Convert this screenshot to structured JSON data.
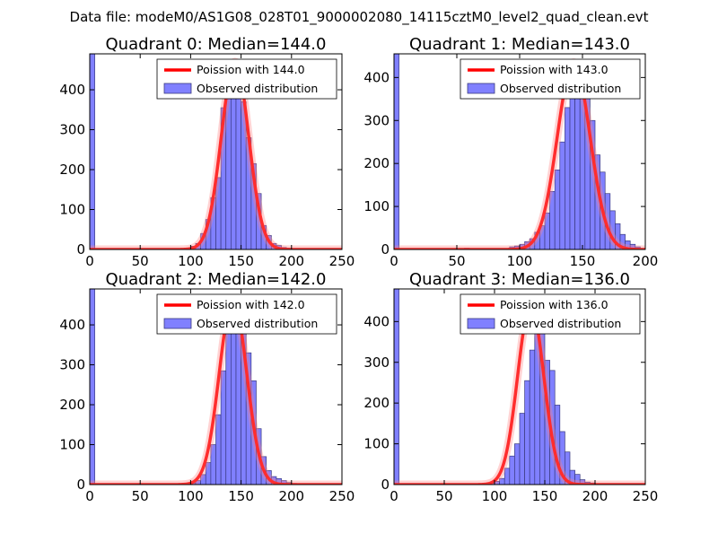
{
  "figure_title": "Data file: modeM0/AS1G08_028T01_9000002080_14115cztM0_level2_quad_clean.evt",
  "colors": {
    "bar_fill": "#8080ff",
    "bar_edge": "#3a3a80",
    "fit_line": "#ff0000",
    "axes": "#000000"
  },
  "chart_data": [
    {
      "type": "bar",
      "title": "Quadrant 0: Median=144.0",
      "median": 144.0,
      "xlim": [
        0,
        250
      ],
      "ylim": [
        0,
        490
      ],
      "xticks": [
        0,
        50,
        100,
        150,
        200,
        250
      ],
      "yticks": [
        0,
        100,
        200,
        300,
        400
      ],
      "legend": {
        "placement": "top-right",
        "fit_label": "Poission with 144.0",
        "hist_label": "Observed distribution"
      },
      "bin_width": 5,
      "bin_starts": [
        0,
        95,
        100,
        105,
        110,
        115,
        120,
        125,
        130,
        135,
        140,
        145,
        150,
        155,
        160,
        165,
        170,
        175,
        180,
        185,
        190,
        195,
        200
      ],
      "counts": [
        490,
        3,
        8,
        15,
        40,
        75,
        130,
        180,
        355,
        395,
        430,
        445,
        370,
        280,
        215,
        140,
        60,
        35,
        15,
        10,
        5,
        3,
        2
      ],
      "fit": {
        "mean": 144.0,
        "peak": 470,
        "sigma": 13.5
      }
    },
    {
      "type": "bar",
      "title": "Quadrant 1: Median=143.0",
      "median": 143.0,
      "xlim": [
        0,
        200
      ],
      "ylim": [
        0,
        455
      ],
      "xticks": [
        0,
        50,
        100,
        150,
        200
      ],
      "yticks": [
        0,
        100,
        200,
        300,
        400
      ],
      "legend": {
        "placement": "top-right",
        "fit_label": "Poission with 143.0",
        "hist_label": "Observed distribution"
      },
      "bin_width": 4,
      "bin_starts": [
        0,
        56,
        92,
        96,
        100,
        104,
        108,
        112,
        116,
        120,
        124,
        128,
        132,
        136,
        140,
        144,
        148,
        152,
        156,
        160,
        164,
        168,
        172,
        176,
        180,
        184,
        188,
        192
      ],
      "counts": [
        455,
        3,
        6,
        8,
        12,
        18,
        25,
        40,
        55,
        85,
        135,
        185,
        250,
        330,
        380,
        420,
        440,
        390,
        300,
        220,
        180,
        130,
        90,
        60,
        35,
        20,
        12,
        6
      ],
      "fit": {
        "mean": 143.0,
        "peak": 435,
        "sigma": 13.0
      }
    },
    {
      "type": "bar",
      "title": "Quadrant 2: Median=142.0",
      "median": 142.0,
      "xlim": [
        0,
        250
      ],
      "ylim": [
        0,
        490
      ],
      "xticks": [
        0,
        50,
        100,
        150,
        200,
        250
      ],
      "yticks": [
        0,
        100,
        200,
        300,
        400
      ],
      "legend": {
        "placement": "top-right",
        "fit_label": "Poission with 142.0",
        "hist_label": "Observed distribution"
      },
      "bin_width": 5,
      "bin_starts": [
        0,
        100,
        105,
        110,
        115,
        120,
        125,
        130,
        135,
        140,
        145,
        150,
        155,
        160,
        165,
        170,
        175,
        180,
        185,
        190,
        195,
        200
      ],
      "counts": [
        490,
        4,
        10,
        25,
        55,
        100,
        175,
        285,
        395,
        430,
        440,
        395,
        330,
        260,
        140,
        70,
        35,
        20,
        15,
        10,
        5,
        3
      ],
      "fit": {
        "mean": 142.0,
        "peak": 465,
        "sigma": 13.5
      }
    },
    {
      "type": "bar",
      "title": "Quadrant 3: Median=136.0",
      "median": 136.0,
      "xlim": [
        0,
        250
      ],
      "ylim": [
        0,
        480
      ],
      "xticks": [
        0,
        50,
        100,
        150,
        200,
        250
      ],
      "yticks": [
        0,
        100,
        200,
        300,
        400
      ],
      "legend": {
        "placement": "top-right",
        "fit_label": "Poission with 136.0",
        "hist_label": "Observed distribution"
      },
      "bin_width": 5,
      "bin_starts": [
        0,
        90,
        95,
        100,
        105,
        110,
        115,
        120,
        125,
        130,
        135,
        140,
        145,
        150,
        155,
        160,
        165,
        170,
        175,
        180,
        185,
        190,
        195,
        200
      ],
      "counts": [
        480,
        3,
        4,
        8,
        15,
        40,
        70,
        100,
        175,
        255,
        330,
        440,
        395,
        305,
        280,
        195,
        130,
        80,
        35,
        25,
        12,
        6,
        4,
        2
      ],
      "fit": {
        "mean": 136.0,
        "peak": 440,
        "sigma": 13.0
      }
    }
  ]
}
